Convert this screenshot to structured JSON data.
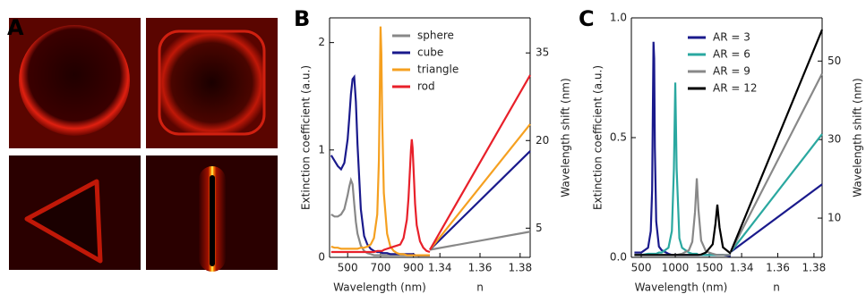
{
  "panel_labels": [
    "A",
    "B",
    "C"
  ],
  "chart_data": [
    {
      "type": "line",
      "xlabel": "Wavelength (nm)",
      "ylabel": "Extinction coefficient (a.u.)",
      "x": [
        400,
        420,
        440,
        460,
        480,
        500,
        510,
        520,
        530,
        540,
        550,
        560,
        580,
        600,
        620,
        640,
        660,
        680,
        690,
        695,
        700,
        705,
        710,
        720,
        740,
        760,
        780,
        800,
        820,
        840,
        860,
        870,
        880,
        885,
        890,
        895,
        900,
        910,
        920,
        940,
        960,
        980,
        1000
      ],
      "xlim": [
        390,
        1000
      ],
      "xticks": [
        500,
        700,
        900
      ],
      "ylim": [
        0,
        2.23
      ],
      "yticks": [
        0,
        1,
        2
      ],
      "series": [
        {
          "name": "sphere",
          "color": "#888888",
          "values": [
            0.4,
            0.38,
            0.38,
            0.4,
            0.45,
            0.58,
            0.66,
            0.72,
            0.68,
            0.5,
            0.33,
            0.22,
            0.11,
            0.06,
            0.04,
            0.03,
            0.02,
            0.02,
            0.02,
            0.02,
            0.02,
            0.02,
            0.02,
            0.02,
            0.02,
            0.02,
            0.02,
            0.02,
            0.02,
            0.02,
            0.02,
            0.02,
            0.02,
            0.02,
            0.02,
            0.02,
            0.02,
            0.02,
            0.02,
            0.01,
            0.01,
            0.01,
            0.01
          ]
        },
        {
          "name": "cube",
          "color": "#1a1a8c",
          "values": [
            0.95,
            0.9,
            0.85,
            0.82,
            0.88,
            1.1,
            1.3,
            1.52,
            1.66,
            1.68,
            1.45,
            1.05,
            0.45,
            0.2,
            0.12,
            0.08,
            0.06,
            0.05,
            0.05,
            0.05,
            0.05,
            0.05,
            0.04,
            0.04,
            0.04,
            0.03,
            0.03,
            0.03,
            0.03,
            0.03,
            0.03,
            0.03,
            0.03,
            0.03,
            0.03,
            0.03,
            0.03,
            0.02,
            0.02,
            0.02,
            0.02,
            0.02,
            0.02
          ]
        },
        {
          "name": "triangle",
          "color": "#f5a020",
          "values": [
            0.1,
            0.09,
            0.09,
            0.08,
            0.08,
            0.08,
            0.08,
            0.08,
            0.08,
            0.08,
            0.08,
            0.08,
            0.09,
            0.09,
            0.1,
            0.12,
            0.18,
            0.4,
            0.9,
            1.5,
            2.15,
            1.9,
            1.3,
            0.6,
            0.22,
            0.1,
            0.06,
            0.04,
            0.03,
            0.03,
            0.02,
            0.02,
            0.02,
            0.02,
            0.02,
            0.02,
            0.02,
            0.02,
            0.02,
            0.02,
            0.02,
            0.02,
            0.02
          ]
        },
        {
          "name": "rod",
          "color": "#e8202a",
          "values": [
            0.05,
            0.05,
            0.05,
            0.05,
            0.05,
            0.05,
            0.05,
            0.05,
            0.05,
            0.05,
            0.05,
            0.05,
            0.05,
            0.05,
            0.05,
            0.05,
            0.05,
            0.06,
            0.06,
            0.06,
            0.06,
            0.06,
            0.06,
            0.07,
            0.08,
            0.09,
            0.1,
            0.11,
            0.12,
            0.18,
            0.35,
            0.55,
            0.85,
            1.0,
            1.1,
            1.02,
            0.85,
            0.5,
            0.3,
            0.15,
            0.09,
            0.06,
            0.05
          ]
        }
      ]
    },
    {
      "type": "line",
      "xlabel": "n",
      "y2label": "Wavelength shift (nm)",
      "x": [
        1.335,
        1.385
      ],
      "xlim": [
        1.335,
        1.385
      ],
      "xticks": [
        1.34,
        1.36,
        1.38
      ],
      "y2lim": [
        0,
        41
      ],
      "y2ticks": [
        5,
        20,
        35
      ],
      "series": [
        {
          "color": "#888888",
          "axis": "y2",
          "values": [
            1.3,
            4.4
          ]
        },
        {
          "color": "#1a1a8c",
          "axis": "y2",
          "values": [
            1.3,
            18.2
          ]
        },
        {
          "color": "#f5a020",
          "axis": "y2",
          "values": [
            1.3,
            22.8
          ]
        },
        {
          "color": "#e8202a",
          "axis": "y2",
          "values": [
            1.3,
            31.2
          ]
        }
      ]
    },
    {
      "type": "line",
      "xlabel": "Wavelength (nm)",
      "ylabel": "Extinction coefficient (a.u.)",
      "x": [
        400,
        500,
        600,
        640,
        660,
        680,
        690,
        700,
        720,
        760,
        800,
        900,
        950,
        980,
        1000,
        1020,
        1060,
        1100,
        1200,
        1250,
        1290,
        1316,
        1340,
        1380,
        1450,
        1550,
        1590,
        1618,
        1650,
        1700,
        1815
      ],
      "xlim": [
        355,
        1815
      ],
      "xticks": [
        500,
        1000,
        1500
      ],
      "ylim": [
        0,
        1
      ],
      "yticks": [
        {
          "value": 0,
          "label": "0.0"
        },
        {
          "value": 0.5,
          "label": "0.5"
        },
        {
          "value": 1,
          "label": "1.0"
        }
      ],
      "series": [
        {
          "name": "AR = 3",
          "color": "#1a1a8c",
          "values": [
            0.02,
            0.02,
            0.04,
            0.11,
            0.28,
            0.9,
            0.83,
            0.46,
            0.15,
            0.045,
            0.03,
            0.015,
            0.01,
            0.01,
            0.01,
            0.01,
            0.01,
            0.01,
            0.01,
            0.01,
            0.01,
            0.01,
            0.01,
            0.01,
            0.01,
            0.01,
            0.01,
            0.01,
            0.01,
            0.01,
            0.005
          ]
        },
        {
          "name": "AR = 6",
          "color": "#2aa8a0",
          "values": [
            0.01,
            0.01,
            0.015,
            0.015,
            0.015,
            0.015,
            0.015,
            0.015,
            0.015,
            0.02,
            0.02,
            0.04,
            0.11,
            0.37,
            0.73,
            0.37,
            0.08,
            0.04,
            0.02,
            0.015,
            0.015,
            0.015,
            0.01,
            0.01,
            0.01,
            0.01,
            0.01,
            0.01,
            0.01,
            0.01,
            0.01
          ]
        },
        {
          "name": "AR = 9",
          "color": "#888888",
          "values": [
            0.01,
            0.01,
            0.01,
            0.01,
            0.01,
            0.01,
            0.01,
            0.01,
            0.01,
            0.01,
            0.01,
            0.01,
            0.01,
            0.01,
            0.01,
            0.01,
            0.013,
            0.015,
            0.03,
            0.065,
            0.19,
            0.33,
            0.2,
            0.07,
            0.025,
            0.015,
            0.012,
            0.01,
            0.01,
            0.01,
            0.01
          ]
        },
        {
          "name": "AR = 12",
          "color": "#000000",
          "values": [
            0.01,
            0.01,
            0.01,
            0.01,
            0.01,
            0.01,
            0.01,
            0.01,
            0.01,
            0.01,
            0.01,
            0.01,
            0.01,
            0.01,
            0.01,
            0.01,
            0.01,
            0.01,
            0.01,
            0.01,
            0.01,
            0.01,
            0.01,
            0.012,
            0.02,
            0.055,
            0.14,
            0.22,
            0.125,
            0.042,
            0.016
          ]
        }
      ]
    },
    {
      "type": "line",
      "xlabel": "n",
      "y2label": "Wavelength shift (nm)",
      "x": [
        1.334,
        1.3845
      ],
      "xlim": [
        1.334,
        1.3845
      ],
      "xticks": [
        1.34,
        1.36,
        1.38
      ],
      "y2lim": [
        0,
        61
      ],
      "y2ticks": [
        10,
        30,
        50
      ],
      "series": [
        {
          "color": "#1a1a8c",
          "axis": "y2",
          "values": [
            1.4,
            18.6
          ]
        },
        {
          "color": "#2aa8a0",
          "axis": "y2",
          "values": [
            1.4,
            31.4
          ]
        },
        {
          "color": "#888888",
          "axis": "y2",
          "values": [
            1.4,
            46.8
          ]
        },
        {
          "color": "#000000",
          "axis": "y2",
          "values": [
            1.4,
            58
          ]
        }
      ]
    }
  ]
}
